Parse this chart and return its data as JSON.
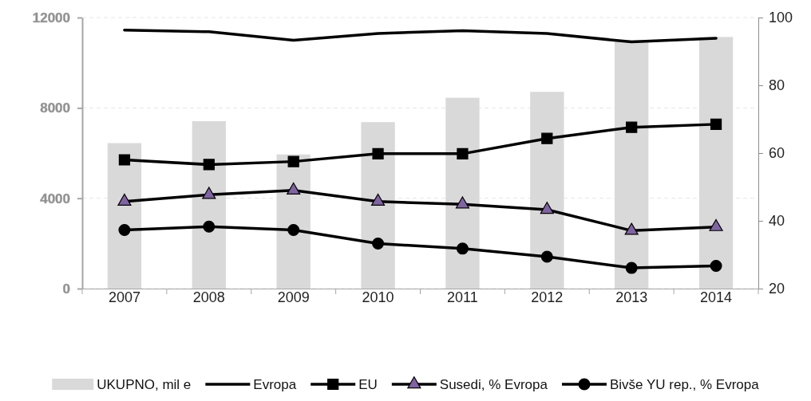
{
  "chart_data": {
    "type": "bar",
    "categories": [
      "2007",
      "2008",
      "2009",
      "2010",
      "2011",
      "2012",
      "2013",
      "2014"
    ],
    "series": [
      {
        "name": "UKUPNO, mil e",
        "color": "#d9d9d9",
        "values": [
          6440,
          7410,
          5940,
          7370,
          8450,
          8710,
          11000,
          11140
        ]
      },
      {
        "name": "Evropa",
        "type": "line",
        "axis": "y2",
        "color": "#000000",
        "marker": "none",
        "values": [
          96.3,
          95.8,
          93.3,
          95.3,
          96.1,
          95.3,
          92.8,
          93.9
        ]
      },
      {
        "name": "EU",
        "type": "line",
        "axis": "y2",
        "color": "#000000",
        "marker": "square",
        "values": [
          58.0,
          56.6,
          57.5,
          59.8,
          59.8,
          64.3,
          67.6,
          68.5
        ]
      },
      {
        "name": "Susedi, % Evropa",
        "type": "line",
        "axis": "y2",
        "color": "#000000",
        "marker": "triangle",
        "colors": [
          "#8064a2",
          "#8064a2",
          "#8064a2",
          "#8064a2",
          "#8064a2",
          "#8064a2",
          "#8064a2",
          "#8064a2"
        ],
        "values": [
          45.7,
          47.7,
          49.0,
          45.7,
          44.9,
          43.3,
          37.1,
          38.2
        ]
      },
      {
        "name": "Bivše YU rep., % Evropa",
        "type": "line",
        "axis": "y2",
        "color": "#000000",
        "marker": "circle",
        "values": [
          37.3,
          38.3,
          37.3,
          33.3,
          31.8,
          29.4,
          26.1,
          26.7
        ]
      }
    ],
    "ylim": [
      0,
      12000
    ],
    "yticks": [
      0,
      4000,
      8000,
      12000
    ],
    "y2lim": [
      20,
      100
    ],
    "y2ticks": [
      20,
      40,
      60,
      80,
      100
    ],
    "grid": "y",
    "legend": "bottom",
    "line_style": "solid"
  }
}
